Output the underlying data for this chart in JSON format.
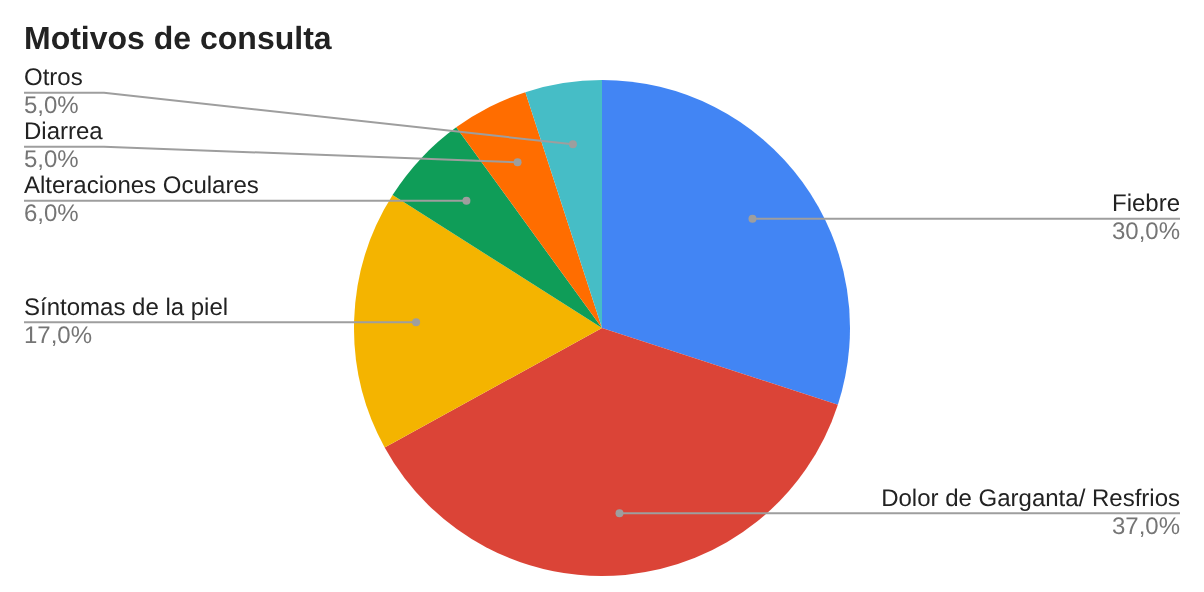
{
  "chart_data": {
    "type": "pie",
    "title": "Motivos de consulta",
    "categories": [
      "Fiebre",
      "Dolor de Garganta/ Resfrios",
      "Síntomas de la piel",
      "Alteraciones Oculares",
      "Diarrea",
      "Otros"
    ],
    "values": [
      30,
      37,
      17,
      6,
      5,
      5
    ],
    "value_labels": [
      "30,0%",
      "37,0%",
      "17,0%",
      "6,0%",
      "5,0%",
      "5,0%"
    ],
    "colors": [
      "#4285f4",
      "#db4437",
      "#f4b400",
      "#0f9d58",
      "#ff6d00",
      "#46bdc6"
    ],
    "legend": false
  }
}
